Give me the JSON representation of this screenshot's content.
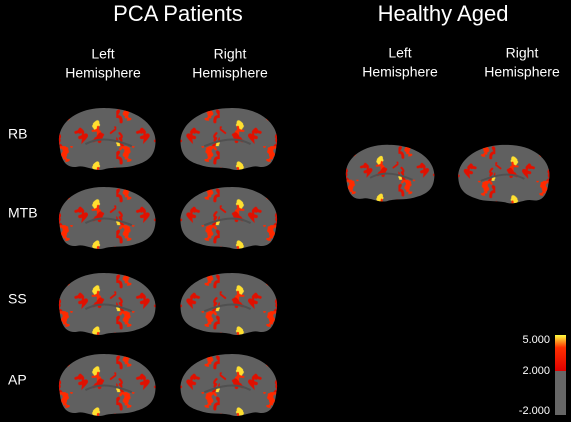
{
  "groups": [
    {
      "title": "PCA Patients",
      "columns": [
        {
          "lines": [
            "Left",
            "Hemisphere"
          ]
        },
        {
          "lines": [
            "Right",
            "Hemisphere"
          ]
        }
      ]
    },
    {
      "title": "Healthy Aged",
      "columns": [
        {
          "lines": [
            "Left",
            "Hemisphere"
          ]
        },
        {
          "lines": [
            "Right",
            "Hemisphere"
          ]
        }
      ]
    }
  ],
  "rows": [
    "RB",
    "MTB",
    "SS",
    "AP"
  ],
  "colorbar": {
    "labels": [
      "5.000",
      "2.000",
      "-2.000"
    ]
  }
}
